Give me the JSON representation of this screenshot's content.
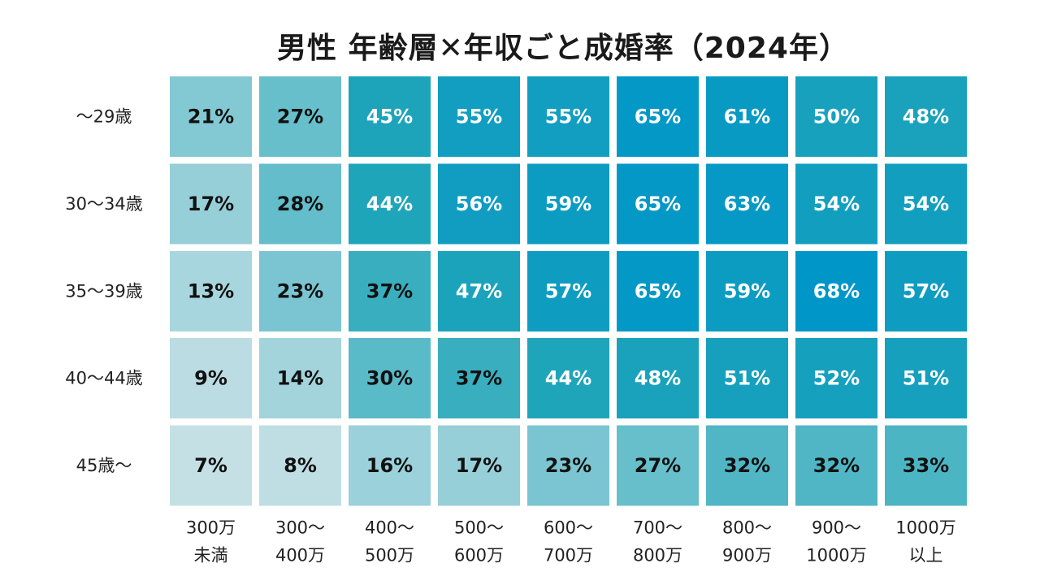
{
  "chart_data": {
    "type": "heatmap",
    "title": "男性 年齢層✕年収ごと成婚率（2024年）",
    "rows": [
      "～29歳",
      "30～34歳",
      "35～39歳",
      "40～44歳",
      "45歳～"
    ],
    "columns": [
      [
        "300万",
        "未満"
      ],
      [
        "300～",
        "400万"
      ],
      [
        "400～",
        "500万"
      ],
      [
        "500～",
        "600万"
      ],
      [
        "600～",
        "700万"
      ],
      [
        "700～",
        "800万"
      ],
      [
        "800～",
        "900万"
      ],
      [
        "900～",
        "1000万"
      ],
      [
        "1000万",
        "以上"
      ]
    ],
    "values": [
      [
        21,
        27,
        45,
        55,
        55,
        65,
        61,
        50,
        48
      ],
      [
        17,
        28,
        44,
        56,
        59,
        65,
        63,
        54,
        54
      ],
      [
        13,
        23,
        37,
        47,
        57,
        65,
        59,
        68,
        57
      ],
      [
        9,
        14,
        30,
        37,
        44,
        48,
        51,
        52,
        51
      ],
      [
        7,
        8,
        16,
        17,
        23,
        27,
        32,
        32,
        33
      ]
    ],
    "unit": "%"
  },
  "colors": {
    "low": "#cde3e8",
    "mid": "#22a6b8",
    "high": "#0096c8",
    "dark_text": "#111111",
    "light_text": "#ffffff"
  }
}
